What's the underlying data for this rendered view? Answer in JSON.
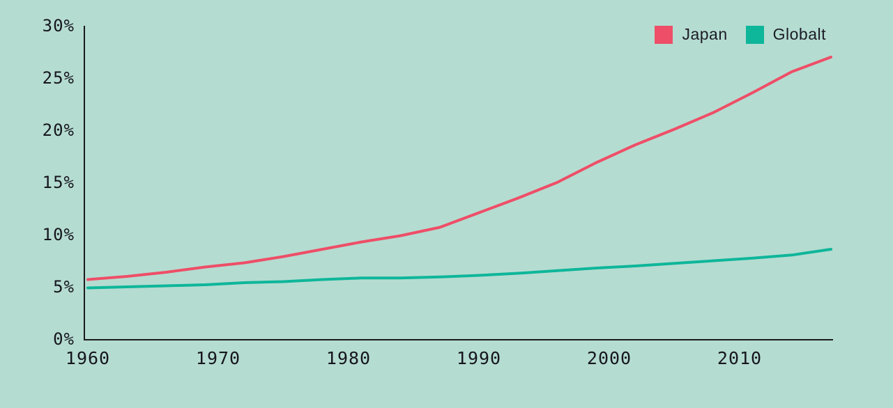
{
  "chart_data": {
    "type": "line",
    "x": [
      1960,
      1963,
      1966,
      1969,
      1972,
      1975,
      1978,
      1981,
      1984,
      1987,
      1990,
      1993,
      1996,
      1999,
      2002,
      2005,
      2008,
      2011,
      2014,
      2017
    ],
    "series": [
      {
        "name": "Japan",
        "color": "#ee4e67",
        "values": [
          5.7,
          6.0,
          6.4,
          6.9,
          7.3,
          7.9,
          8.6,
          9.3,
          9.9,
          10.7,
          12.1,
          13.5,
          15.0,
          16.9,
          18.6,
          20.1,
          21.7,
          23.6,
          25.6,
          27.0
        ]
      },
      {
        "name": "Globalt",
        "color": "#0eb69a",
        "values": [
          4.9,
          5.0,
          5.1,
          5.2,
          5.4,
          5.5,
          5.7,
          5.85,
          5.85,
          5.95,
          6.1,
          6.3,
          6.55,
          6.8,
          7.0,
          7.25,
          7.5,
          7.75,
          8.05,
          8.6
        ]
      }
    ],
    "xlim": [
      1960,
      2017
    ],
    "ylim": [
      0,
      30
    ],
    "y_ticks": [
      "30%",
      "25%",
      "20%",
      "15%",
      "10%",
      "5%",
      "0%"
    ],
    "y_tick_values": [
      30,
      25,
      20,
      15,
      10,
      5,
      0
    ],
    "x_ticks": [
      "1960",
      "1970",
      "1980",
      "1990",
      "2000",
      "2010"
    ],
    "x_tick_values": [
      1960,
      1970,
      1980,
      1990,
      2000,
      2010
    ],
    "grid": false,
    "legend_position": "top-right"
  },
  "colors": {
    "background": "#b5dcd1",
    "axis": "#1a1a1a",
    "tick_text": "#16161e",
    "japan": "#ee4e67",
    "globalt": "#0eb69a"
  }
}
